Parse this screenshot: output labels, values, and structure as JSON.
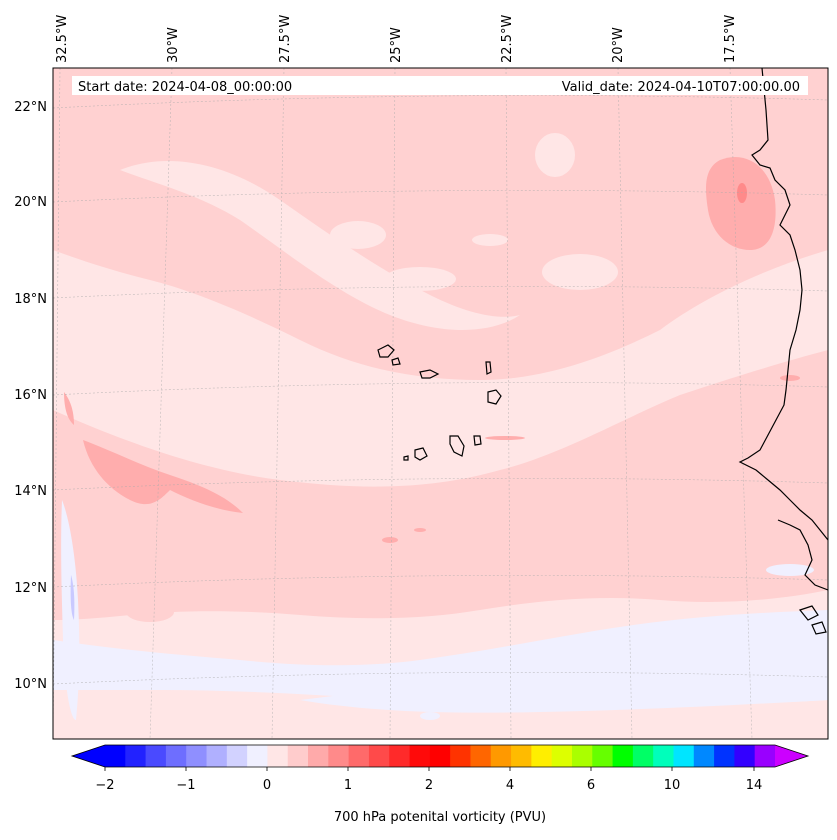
{
  "header": {
    "start_date": "Start date: 2024-04-08_00:00:00",
    "valid_date": "Valid_date: 2024-04-10T07:00:00.00"
  },
  "map": {
    "lon_labels": [
      "32.5°W",
      "30°W",
      "27.5°W",
      "25°W",
      "22.5°W",
      "20°W",
      "17.5°W"
    ],
    "lat_labels": [
      "22°N",
      "20°N",
      "18°N",
      "16°N",
      "14°N",
      "12°N",
      "10°N"
    ]
  },
  "colorbar": {
    "label": "700 hPa potenital vorticity (PVU)",
    "tick_labels": [
      "−2",
      "−1",
      "0",
      "1",
      "2",
      "4",
      "6",
      "10",
      "14"
    ],
    "colors": [
      "#0000ff",
      "#2222ff",
      "#4a4aff",
      "#6e6eff",
      "#8f8fff",
      "#b0b0ff",
      "#d2d2ff",
      "#f0f0ff",
      "#ffe6e6",
      "#ffcccc",
      "#ffaaaa",
      "#ff8a8a",
      "#ff6a6a",
      "#ff4a4a",
      "#ff2a2a",
      "#ff0a0a",
      "#ff0000",
      "#ff3300",
      "#ff6600",
      "#ff9900",
      "#ffbb00",
      "#ffee00",
      "#ddff00",
      "#aaff00",
      "#66ff00",
      "#00ff00",
      "#00ff66",
      "#00ffbb",
      "#00e5ff",
      "#0088ff",
      "#0033ff",
      "#3300ff",
      "#9900ff"
    ],
    "extend_min_color": "#0000ff",
    "extend_max_color": "#cc00ff"
  }
}
